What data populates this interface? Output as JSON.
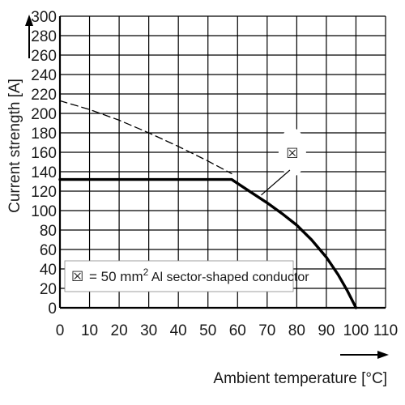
{
  "chart_data": {
    "type": "line",
    "xlabel": "Ambient temperature [°C]",
    "ylabel": "Current strength [A]",
    "xlim": [
      0,
      110
    ],
    "ylim": [
      0,
      300
    ],
    "x_ticks": [
      0,
      10,
      20,
      30,
      40,
      50,
      60,
      70,
      80,
      90,
      100,
      110
    ],
    "y_ticks": [
      0,
      20,
      40,
      60,
      80,
      100,
      120,
      140,
      160,
      180,
      200,
      220,
      240,
      260,
      280,
      300
    ],
    "grid": true,
    "series": [
      {
        "style": "dashed",
        "x": [
          0,
          10,
          20,
          30,
          40,
          50,
          58
        ],
        "y": [
          213,
          204,
          193,
          180,
          166,
          151,
          138
        ]
      },
      {
        "style": "solid-thick",
        "x": [
          0,
          58,
          60,
          65,
          70,
          75,
          80,
          85,
          90,
          94,
          97,
          100
        ],
        "y": [
          132,
          132,
          128,
          118,
          108,
          97,
          85,
          70,
          52,
          34,
          18,
          0
        ]
      }
    ],
    "annotation": {
      "symbol": "☒",
      "points_to": {
        "x": 68,
        "y": 116
      },
      "label_position": {
        "x": 78.5,
        "y": 160
      }
    },
    "legend": {
      "symbol": "☒",
      "text_prefix": "= 50 mm",
      "superscript": "2",
      "text_suffix": " Al sector-shaped conductor",
      "placement": "bottom-left"
    }
  }
}
